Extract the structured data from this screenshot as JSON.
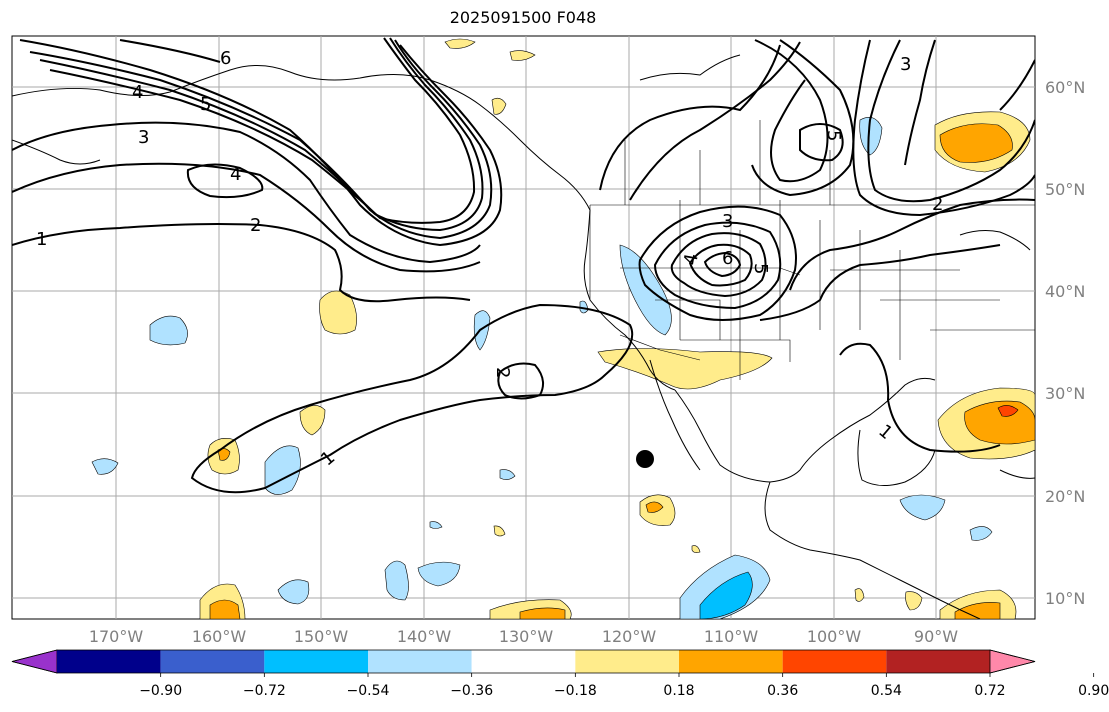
{
  "title": "2025091500 F048",
  "lat_labels": [
    "60°N",
    "50°N",
    "40°N",
    "30°N",
    "20°N",
    "10°N"
  ],
  "lon_labels": [
    "170°W",
    "160°W",
    "150°W",
    "140°W",
    "130°W",
    "120°W",
    "110°W",
    "100°W",
    "90°W"
  ],
  "contour_labels": [
    "1",
    "1",
    "1",
    "2",
    "2",
    "3",
    "3",
    "4",
    "4",
    "4",
    "5",
    "5",
    "6",
    "6",
    "5",
    "3",
    "2"
  ],
  "colorbar": {
    "colors": [
      "#9932cc",
      "#00008b",
      "#3a5fcd",
      "#00bfff",
      "#b0e2ff",
      "#ffffff",
      "#ffec8b",
      "#ffa500",
      "#ff4500",
      "#b22222",
      "#ff88aa"
    ],
    "tick_labels": [
      "−0.90",
      "−0.72",
      "−0.54",
      "−0.36",
      "−0.18",
      "0.18",
      "0.36",
      "0.54",
      "0.72",
      "0.90"
    ]
  },
  "marker": {
    "label": "black-dot"
  }
}
